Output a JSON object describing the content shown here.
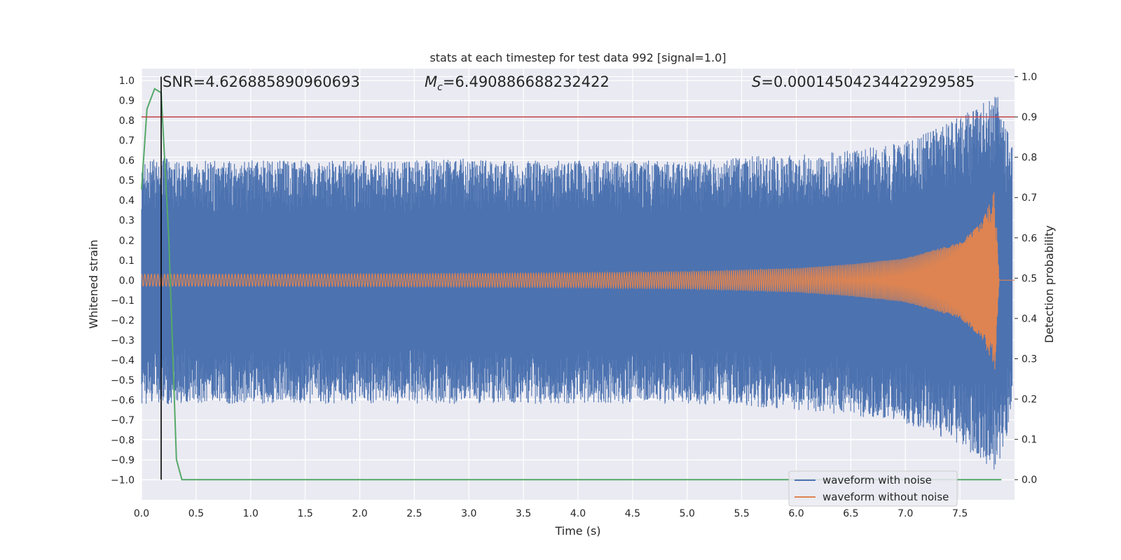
{
  "chart_data": {
    "type": "line",
    "title": "stats at each timestep for test data 992 [signal=1.0]",
    "xlabel": "Time (s)",
    "ylabel_left": "Whitened strain",
    "ylabel_right": "Detection probability",
    "xlim": [
      0.0,
      8.0
    ],
    "ylim_left": [
      -1.1,
      1.06
    ],
    "ylim_right": [
      -0.05,
      1.02
    ],
    "x_ticks": [
      "0.0",
      "0.5",
      "1.0",
      "1.5",
      "2.0",
      "2.5",
      "3.0",
      "3.5",
      "4.0",
      "4.5",
      "5.0",
      "5.5",
      "6.0",
      "6.5",
      "7.0",
      "7.5"
    ],
    "y_ticks_left": [
      "1.0",
      "0.9",
      "0.8",
      "0.7",
      "0.6",
      "0.5",
      "0.4",
      "0.3",
      "0.2",
      "0.1",
      "0.0",
      "−0.1",
      "−0.2",
      "−0.3",
      "−0.4",
      "−0.5",
      "−0.6",
      "−0.7",
      "−0.8",
      "−0.9",
      "−1.0"
    ],
    "y_ticks_right": [
      "1.0",
      "0.9",
      "0.8",
      "0.7",
      "0.6",
      "0.5",
      "0.4",
      "0.3",
      "0.2",
      "0.1",
      "0.0"
    ],
    "grid": true,
    "legend_position": "lower-right",
    "annotations": {
      "snr": "SNR=4.626885890960693",
      "mc_symbol": "M",
      "mc_sub": "c",
      "mc_value": "=6.490886688232422",
      "s_symbol": "S",
      "s_value": "=0.00014504234422929585"
    },
    "series": [
      {
        "name": "waveform with noise",
        "color": "#4c72b0",
        "description_envelope": {
          "x": [
            0.0,
            0.5,
            1.0,
            1.5,
            2.0,
            2.5,
            3.0,
            3.5,
            4.0,
            4.5,
            5.0,
            5.5,
            6.0,
            6.5,
            7.0,
            7.5,
            7.85,
            8.0
          ],
          "upper": [
            0.62,
            0.6,
            0.6,
            0.6,
            0.6,
            0.6,
            0.61,
            0.6,
            0.6,
            0.6,
            0.6,
            0.62,
            0.63,
            0.65,
            0.7,
            0.82,
            0.93,
            0.63
          ],
          "lower": [
            -0.62,
            -0.62,
            -0.62,
            -0.62,
            -0.62,
            -0.62,
            -0.62,
            -0.62,
            -0.62,
            -0.62,
            -0.62,
            -0.63,
            -0.65,
            -0.68,
            -0.72,
            -0.82,
            -0.98,
            -0.63
          ]
        }
      },
      {
        "name": "waveform without noise",
        "color": "#dd8452",
        "envelope": {
          "x": [
            0.0,
            1.0,
            2.0,
            3.0,
            4.0,
            5.0,
            6.0,
            6.5,
            7.0,
            7.5,
            7.7,
            7.82,
            7.86,
            8.0
          ],
          "amp": [
            0.03,
            0.03,
            0.032,
            0.034,
            0.037,
            0.043,
            0.06,
            0.08,
            0.11,
            0.19,
            0.29,
            0.45,
            0.0,
            0.0
          ]
        },
        "cycles": 260
      }
    ],
    "detection_probability": {
      "color": "#55a868",
      "x": [
        0.0,
        0.05,
        0.12,
        0.18,
        0.25,
        0.32,
        0.37,
        0.4,
        7.88
      ],
      "y": [
        0.72,
        0.92,
        0.97,
        0.96,
        0.6,
        0.05,
        0.0,
        0.0,
        0.0
      ]
    },
    "threshold": {
      "value": 0.9,
      "axis": "right",
      "color": "#c44e52"
    },
    "detection_time": {
      "value": 0.18,
      "color": "#000000"
    }
  }
}
